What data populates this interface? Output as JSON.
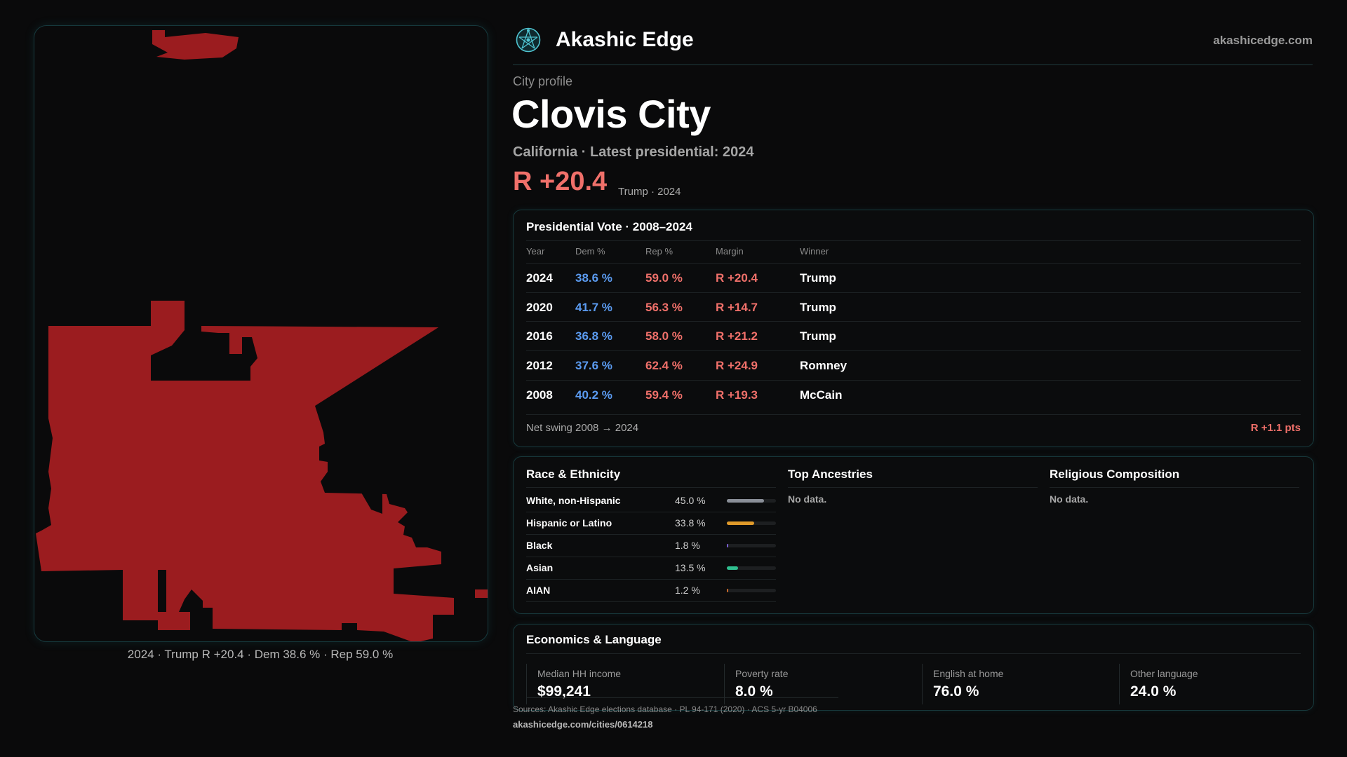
{
  "brand": {
    "name": "Akashic Edge",
    "site": "akashicedge.com",
    "logo_icon": "network-globe-icon",
    "accent": "#4fc3d0"
  },
  "profile": {
    "kicker": "City profile",
    "city": "Clovis City",
    "subtitle": "California · Latest presidential: 2024",
    "margin": "R +20.4",
    "margin_note": "Trump · 2024"
  },
  "map": {
    "caption": "2024 · Trump R +20.4 · Dem 38.6 % · Rep 59.0 %",
    "fill_color": "#9b1c1f"
  },
  "vote": {
    "title": "Presidential Vote · 2008–2024",
    "columns": [
      "Year",
      "Dem %",
      "Rep %",
      "Margin",
      "Winner"
    ],
    "rows": [
      {
        "year": "2024",
        "dem": "38.6 %",
        "rep": "59.0 %",
        "margin": "R +20.4",
        "winner": "Trump"
      },
      {
        "year": "2020",
        "dem": "41.7 %",
        "rep": "56.3 %",
        "margin": "R +14.7",
        "winner": "Trump"
      },
      {
        "year": "2016",
        "dem": "36.8 %",
        "rep": "58.0 %",
        "margin": "R +21.2",
        "winner": "Trump"
      },
      {
        "year": "2012",
        "dem": "37.6 %",
        "rep": "62.4 %",
        "margin": "R +24.9",
        "winner": "Romney"
      },
      {
        "year": "2008",
        "dem": "40.2 %",
        "rep": "59.4 %",
        "margin": "R +19.3",
        "winner": "McCain"
      }
    ],
    "net_swing_label": "Net swing 2008 → 2024",
    "net_swing_value": "R +1.1 pts",
    "colors": {
      "dem": "#5b9bf0",
      "rep": "#f0706a"
    }
  },
  "race": {
    "title": "Race & Ethnicity",
    "rows": [
      {
        "label": "White, non-Hispanic",
        "value": "45.0 %",
        "share": 0.45,
        "color": "#8a8f98"
      },
      {
        "label": "Hispanic or Latino",
        "value": "33.8 %",
        "share": 0.338,
        "color": "#e09a2a"
      },
      {
        "label": "Black",
        "value": "1.8 %",
        "share": 0.018,
        "color": "#7a5fd0"
      },
      {
        "label": "Asian",
        "value": "13.5 %",
        "share": 0.135,
        "color": "#2fbf8f"
      },
      {
        "label": "AIAN",
        "value": "1.2 %",
        "share": 0.012,
        "color": "#c8692a"
      }
    ]
  },
  "ancestries": {
    "title": "Top Ancestries",
    "empty": "No data."
  },
  "religion": {
    "title": "Religious Composition",
    "empty": "No data."
  },
  "economics": {
    "title": "Economics & Language",
    "stats": [
      {
        "label": "Median HH income",
        "value": "$99,241"
      },
      {
        "label": "Poverty rate",
        "value": "8.0 %"
      },
      {
        "label": "English at home",
        "value": "76.0 %"
      },
      {
        "label": "Other language",
        "value": "24.0 %"
      }
    ]
  },
  "footer": {
    "sources": "Sources: Akashic Edge elections database · PL 94-171 (2020) · ACS 5-yr B04006",
    "permalink": "akashicedge.com/cities/0614218"
  }
}
